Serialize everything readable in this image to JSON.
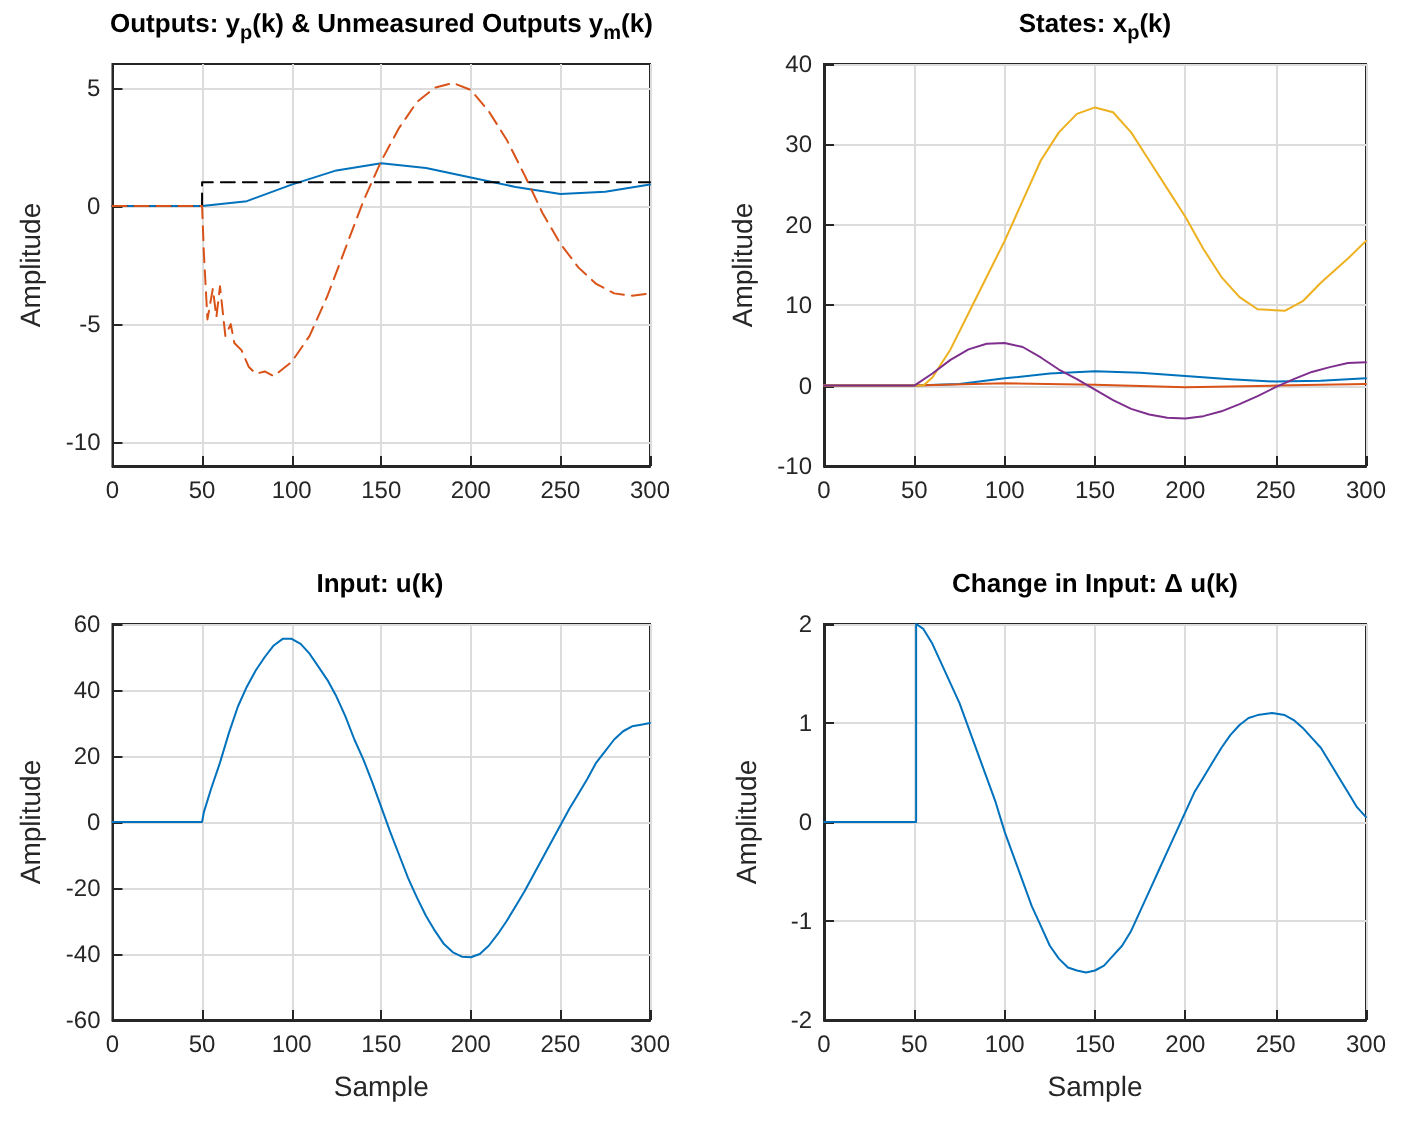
{
  "chart_data": [
    {
      "type": "line",
      "title": "Outputs: y$_{p}$(k) & Unmeasured Outputs y$_{m}$(k)",
      "ylabel": "Amplitude",
      "xlim": [
        0,
        300
      ],
      "xticks": [
        0,
        50,
        100,
        150,
        200,
        250,
        300
      ],
      "ylim": [
        -11,
        6
      ],
      "yticks": [
        -10,
        -5,
        0,
        5
      ],
      "grid": true,
      "marker": "none",
      "series": [
        {
          "color": "#0072bd",
          "line_style": "solid",
          "x": [
            0,
            50,
            75,
            100,
            125,
            150,
            175,
            200,
            225,
            250,
            275,
            300
          ],
          "values": [
            0,
            0,
            0.2,
            0.9,
            1.5,
            1.8,
            1.6,
            1.2,
            0.8,
            0.5,
            0.6,
            0.9
          ]
        },
        {
          "color": "#000000",
          "line_style": "dashed",
          "x": [
            0,
            50,
            50,
            300
          ],
          "values": [
            0,
            0,
            1,
            1
          ]
        },
        {
          "color": "#d95319",
          "line_style": "dashed",
          "x": [
            0,
            50,
            51,
            53,
            56,
            58,
            60,
            63,
            66,
            68,
            72,
            76,
            80,
            85,
            90,
            95,
            100,
            110,
            120,
            130,
            140,
            150,
            160,
            170,
            180,
            190,
            200,
            210,
            220,
            230,
            240,
            250,
            260,
            270,
            280,
            290,
            300
          ],
          "values": [
            0,
            0,
            -2,
            -4.8,
            -3.5,
            -4.7,
            -3.4,
            -5.5,
            -5,
            -5.8,
            -6.1,
            -6.8,
            -7.1,
            -7,
            -7.2,
            -6.9,
            -6.6,
            -5.5,
            -3.8,
            -1.8,
            0.2,
            1.9,
            3.3,
            4.4,
            5,
            5.2,
            4.9,
            4,
            2.8,
            1.3,
            -0.3,
            -1.6,
            -2.6,
            -3.3,
            -3.7,
            -3.8,
            -3.7
          ]
        }
      ]
    },
    {
      "type": "line",
      "title": "States: x$_{p}$(k)",
      "ylabel": "Amplitude",
      "xlim": [
        0,
        300
      ],
      "xticks": [
        0,
        50,
        100,
        150,
        200,
        250,
        300
      ],
      "ylim": [
        -10,
        40
      ],
      "yticks": [
        -10,
        0,
        10,
        20,
        30,
        40
      ],
      "grid": true,
      "marker": "none",
      "series": [
        {
          "color": "#0072bd",
          "line_style": "solid",
          "x": [
            0,
            50,
            75,
            100,
            125,
            150,
            175,
            200,
            225,
            250,
            275,
            300
          ],
          "values": [
            0,
            0,
            0.2,
            0.9,
            1.5,
            1.8,
            1.6,
            1.2,
            0.8,
            0.5,
            0.6,
            0.9
          ]
        },
        {
          "color": "#d95319",
          "line_style": "solid",
          "x": [
            0,
            50,
            100,
            150,
            200,
            250,
            300
          ],
          "values": [
            0,
            0,
            0.3,
            0.1,
            -0.2,
            0,
            0.2
          ]
        },
        {
          "color": "#edb120",
          "line_style": "solid",
          "x": [
            0,
            55,
            60,
            70,
            80,
            90,
            100,
            110,
            120,
            130,
            140,
            150,
            160,
            170,
            180,
            190,
            200,
            210,
            220,
            230,
            240,
            255,
            265,
            275,
            290,
            300
          ],
          "values": [
            0,
            0,
            1,
            4.5,
            9,
            13.5,
            18,
            23,
            28,
            31.5,
            33.8,
            34.6,
            34,
            31.5,
            28,
            24.5,
            21,
            17,
            13.5,
            11,
            9.5,
            9.3,
            10.5,
            12.8,
            15.8,
            18
          ]
        },
        {
          "color": "#7e2f8e",
          "line_style": "solid",
          "x": [
            0,
            50,
            60,
            70,
            80,
            90,
            100,
            110,
            120,
            130,
            140,
            150,
            160,
            170,
            180,
            190,
            200,
            210,
            220,
            230,
            240,
            250,
            260,
            270,
            280,
            290,
            300
          ],
          "values": [
            0,
            0,
            1.5,
            3.2,
            4.5,
            5.2,
            5.3,
            4.8,
            3.5,
            2,
            0.8,
            -0.5,
            -1.8,
            -2.9,
            -3.6,
            -4,
            -4.1,
            -3.8,
            -3.2,
            -2.3,
            -1.3,
            -0.2,
            0.8,
            1.7,
            2.3,
            2.8,
            2.9
          ]
        }
      ]
    },
    {
      "type": "line",
      "title": "Input: u(k)",
      "xlabel": "Sample",
      "ylabel": "Amplitude",
      "xlim": [
        0,
        300
      ],
      "xticks": [
        0,
        50,
        100,
        150,
        200,
        250,
        300
      ],
      "ylim": [
        -60,
        60
      ],
      "yticks": [
        -60,
        -40,
        -20,
        0,
        20,
        40,
        60
      ],
      "grid": true,
      "marker": "none",
      "series": [
        {
          "color": "#0072bd",
          "line_style": "solid",
          "x": [
            0,
            50,
            51,
            55,
            60,
            65,
            70,
            75,
            80,
            85,
            90,
            95,
            100,
            105,
            110,
            115,
            120,
            125,
            130,
            135,
            140,
            145,
            150,
            155,
            160,
            165,
            170,
            175,
            180,
            185,
            190,
            195,
            200,
            205,
            210,
            215,
            220,
            225,
            230,
            235,
            240,
            245,
            250,
            255,
            260,
            265,
            270,
            275,
            280,
            285,
            290,
            295,
            300
          ],
          "values": [
            0,
            0,
            3,
            10,
            18,
            27,
            35,
            41,
            46,
            50,
            53.5,
            55.5,
            55.5,
            54,
            51,
            47,
            43,
            38,
            32,
            25,
            19,
            12,
            4.5,
            -3,
            -10,
            -17,
            -23,
            -28.5,
            -33,
            -37,
            -39.5,
            -40.8,
            -41,
            -40,
            -37.5,
            -34,
            -30,
            -25.5,
            -21,
            -16,
            -11,
            -6,
            -1,
            4,
            8.5,
            13,
            18,
            21.5,
            25,
            27.5,
            29,
            29.5,
            30
          ]
        }
      ]
    },
    {
      "type": "line",
      "title": "Change in Input: Δ u(k)",
      "xlabel": "Sample",
      "ylabel": "Amplitude",
      "xlim": [
        0,
        300
      ],
      "xticks": [
        0,
        50,
        100,
        150,
        200,
        250,
        300
      ],
      "ylim": [
        -2,
        2
      ],
      "yticks": [
        -2,
        -1,
        0,
        1,
        2
      ],
      "grid": true,
      "marker": "none",
      "series": [
        {
          "color": "#0072bd",
          "line_style": "solid",
          "x": [
            0,
            51,
            51,
            55,
            60,
            65,
            70,
            75,
            80,
            85,
            90,
            95,
            100,
            105,
            110,
            115,
            120,
            125,
            130,
            135,
            140,
            145,
            150,
            155,
            160,
            165,
            170,
            175,
            180,
            185,
            190,
            195,
            200,
            205,
            210,
            215,
            220,
            225,
            230,
            235,
            240,
            248,
            255,
            260,
            265,
            270,
            275,
            280,
            285,
            290,
            295,
            300
          ],
          "values": [
            0,
            0,
            2,
            1.95,
            1.8,
            1.6,
            1.4,
            1.2,
            0.95,
            0.7,
            0.45,
            0.2,
            -0.1,
            -0.35,
            -0.6,
            -0.85,
            -1.05,
            -1.25,
            -1.38,
            -1.47,
            -1.5,
            -1.52,
            -1.5,
            -1.45,
            -1.35,
            -1.25,
            -1.1,
            -0.9,
            -0.7,
            -0.5,
            -0.3,
            -0.1,
            0.1,
            0.3,
            0.45,
            0.6,
            0.75,
            0.88,
            0.98,
            1.05,
            1.08,
            1.1,
            1.08,
            1.03,
            0.95,
            0.85,
            0.75,
            0.6,
            0.45,
            0.3,
            0.15,
            0.05
          ]
        }
      ]
    }
  ]
}
